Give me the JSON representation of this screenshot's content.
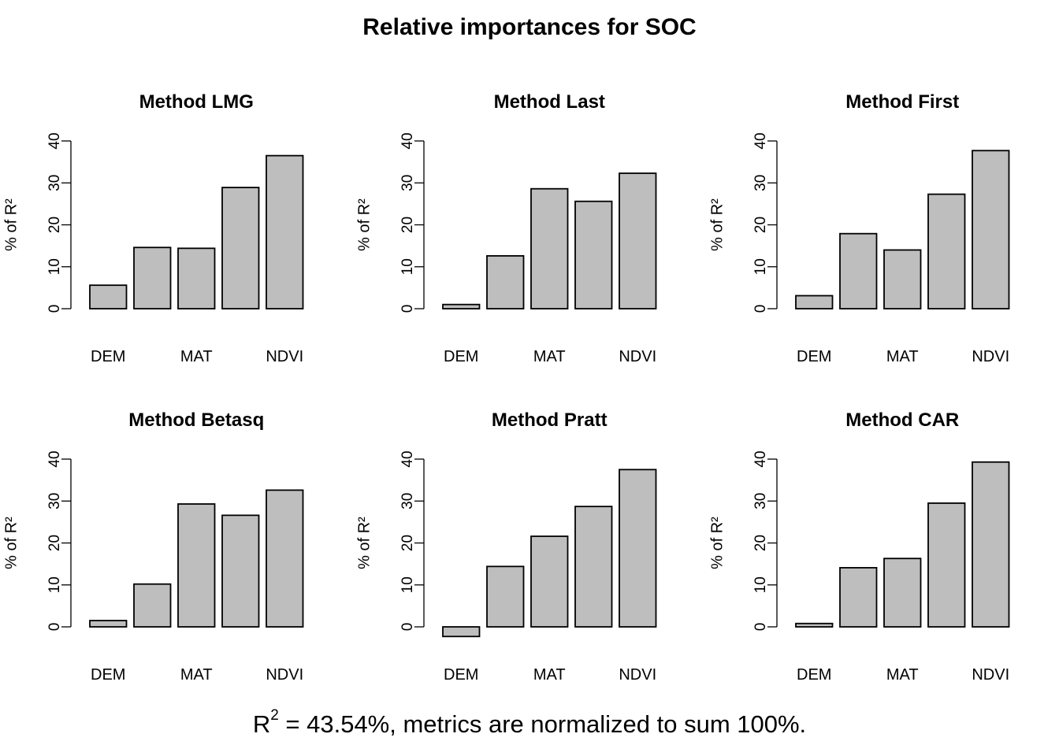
{
  "title": "Relative importances for SOC",
  "footnote": {
    "prefix": "R",
    "superscript": "2",
    "text": " = 43.54%, metrics are normalized to sum 100%."
  },
  "chart_data": [
    {
      "type": "bar",
      "title": "Method LMG",
      "ylabel": "% of R²",
      "ylim": [
        0,
        40
      ],
      "yticks": [
        0,
        10,
        20,
        30,
        40
      ],
      "x_tick_labels": [
        "DEM",
        "MAT",
        "NDVI"
      ],
      "categories": [
        "DEM",
        "",
        "MAT",
        "",
        "NDVI"
      ],
      "values": [
        5.6,
        14.6,
        14.4,
        28.9,
        36.5
      ],
      "bar_color": "#bebebe"
    },
    {
      "type": "bar",
      "title": "Method Last",
      "ylabel": "% of R²",
      "ylim": [
        0,
        40
      ],
      "yticks": [
        0,
        10,
        20,
        30,
        40
      ],
      "x_tick_labels": [
        "DEM",
        "MAT",
        "NDVI"
      ],
      "categories": [
        "DEM",
        "",
        "MAT",
        "",
        "NDVI"
      ],
      "values": [
        1.0,
        12.6,
        28.6,
        25.6,
        32.3
      ],
      "bar_color": "#bebebe"
    },
    {
      "type": "bar",
      "title": "Method First",
      "ylabel": "% of R²",
      "ylim": [
        0,
        40
      ],
      "yticks": [
        0,
        10,
        20,
        30,
        40
      ],
      "x_tick_labels": [
        "DEM",
        "MAT",
        "NDVI"
      ],
      "categories": [
        "DEM",
        "",
        "MAT",
        "",
        "NDVI"
      ],
      "values": [
        3.1,
        17.9,
        14.0,
        27.3,
        37.7
      ],
      "bar_color": "#bebebe"
    },
    {
      "type": "bar",
      "title": "Method Betasq",
      "ylabel": "% of R²",
      "ylim": [
        0,
        40
      ],
      "yticks": [
        0,
        10,
        20,
        30,
        40
      ],
      "x_tick_labels": [
        "DEM",
        "MAT",
        "NDVI"
      ],
      "categories": [
        "DEM",
        "",
        "MAT",
        "",
        "NDVI"
      ],
      "values": [
        1.5,
        10.2,
        29.3,
        26.6,
        32.6
      ],
      "bar_color": "#bebebe"
    },
    {
      "type": "bar",
      "title": "Method Pratt",
      "ylabel": "% of R²",
      "ylim": [
        0,
        40
      ],
      "yticks": [
        0,
        10,
        20,
        30,
        40
      ],
      "x_tick_labels": [
        "DEM",
        "MAT",
        "NDVI"
      ],
      "categories": [
        "DEM",
        "",
        "MAT",
        "",
        "NDVI"
      ],
      "values": [
        -2.3,
        14.4,
        21.6,
        28.7,
        37.5
      ],
      "bar_color": "#bebebe"
    },
    {
      "type": "bar",
      "title": "Method CAR",
      "ylabel": "% of R²",
      "ylim": [
        0,
        40
      ],
      "yticks": [
        0,
        10,
        20,
        30,
        40
      ],
      "x_tick_labels": [
        "DEM",
        "MAT",
        "NDVI"
      ],
      "categories": [
        "DEM",
        "",
        "MAT",
        "",
        "NDVI"
      ],
      "values": [
        0.8,
        14.1,
        16.3,
        29.5,
        39.3
      ],
      "bar_color": "#bebebe"
    }
  ]
}
